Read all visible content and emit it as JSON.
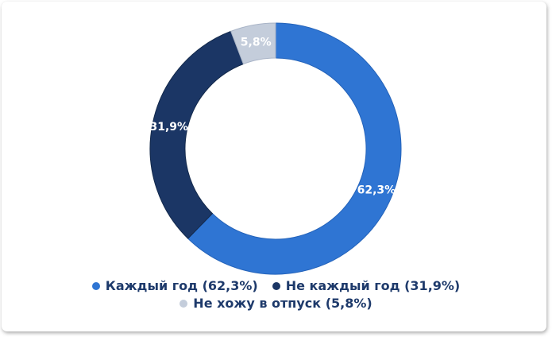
{
  "chart_data": {
    "type": "pie",
    "variant": "donut",
    "title": "",
    "categories": [
      "Каждый год",
      "Не каждый год",
      "Не хожу в отпуск"
    ],
    "values": [
      62.3,
      31.9,
      5.8
    ],
    "slice_labels": [
      "62,3%",
      "31,9%",
      "5,8%"
    ],
    "colors": [
      "#2F75D3",
      "#1B3665",
      "#C4CDDB"
    ],
    "stroke_colors": [
      "#2463BA",
      "#13294B",
      "#A9B4C7"
    ],
    "start_angle_deg": 0,
    "direction": "clockwise",
    "label_color": "#ffffff",
    "legend": {
      "position": "bottom",
      "text_color": "#1E3A6B",
      "items": [
        {
          "label": "Каждый год (62,3%)",
          "color": "#2F75D3"
        },
        {
          "label": "Не каждый год (31,9%)",
          "color": "#1B3665"
        },
        {
          "label": "Не хожу в отпуск (5,8%)",
          "color": "#C4CDDB"
        }
      ]
    }
  }
}
